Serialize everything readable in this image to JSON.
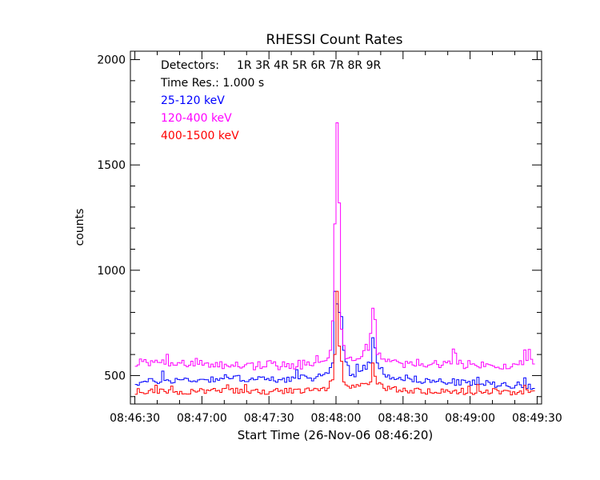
{
  "chart_data": {
    "type": "line",
    "title": "RHESSI Count Rates",
    "xlabel": "Start Time (26-Nov-06 08:46:20)",
    "ylabel": "counts",
    "x_ticks": [
      "08:46:30",
      "08:47:00",
      "08:47:30",
      "08:48:00",
      "08:48:30",
      "08:49:00",
      "08:49:30"
    ],
    "x_tick_seconds": [
      0,
      30,
      60,
      90,
      120,
      150,
      180
    ],
    "xlim_seconds": [
      -2,
      182
    ],
    "y_ticks": [
      500,
      1000,
      1500,
      2000
    ],
    "ylim": [
      365,
      2040
    ],
    "grid": false,
    "annotations": {
      "detectors_label": "Detectors:",
      "detectors": "1R 3R 4R 5R 6R 7R 8R 9R",
      "time_res": "Time Res.: 1.000 s"
    },
    "series": [
      {
        "name": "25-120 keV",
        "color": "#0000ff",
        "keypoints": [
          [
            0,
            465
          ],
          [
            10,
            475
          ],
          [
            20,
            480
          ],
          [
            30,
            480
          ],
          [
            40,
            490
          ],
          [
            50,
            485
          ],
          [
            60,
            480
          ],
          [
            70,
            485
          ],
          [
            80,
            490
          ],
          [
            86,
            510
          ],
          [
            88,
            560
          ],
          [
            89,
            900
          ],
          [
            90,
            840
          ],
          [
            92,
            780
          ],
          [
            93,
            620
          ],
          [
            96,
            500
          ],
          [
            100,
            520
          ],
          [
            105,
            560
          ],
          [
            106,
            680
          ],
          [
            108,
            560
          ],
          [
            112,
            500
          ],
          [
            120,
            490
          ],
          [
            130,
            475
          ],
          [
            140,
            470
          ],
          [
            150,
            465
          ],
          [
            160,
            460
          ],
          [
            170,
            455
          ],
          [
            178,
            450
          ]
        ],
        "noise": 16
      },
      {
        "name": "120-400 keV",
        "color": "#ff00ff",
        "keypoints": [
          [
            0,
            560
          ],
          [
            10,
            555
          ],
          [
            20,
            560
          ],
          [
            30,
            550
          ],
          [
            40,
            550
          ],
          [
            50,
            545
          ],
          [
            60,
            550
          ],
          [
            70,
            550
          ],
          [
            80,
            555
          ],
          [
            85,
            570
          ],
          [
            87,
            620
          ],
          [
            88,
            760
          ],
          [
            89,
            1220
          ],
          [
            90,
            1700
          ],
          [
            91,
            1320
          ],
          [
            92,
            720
          ],
          [
            94,
            580
          ],
          [
            100,
            580
          ],
          [
            104,
            620
          ],
          [
            106,
            820
          ],
          [
            108,
            600
          ],
          [
            112,
            560
          ],
          [
            120,
            560
          ],
          [
            130,
            555
          ],
          [
            140,
            560
          ],
          [
            150,
            550
          ],
          [
            160,
            545
          ],
          [
            170,
            550
          ],
          [
            178,
            560
          ]
        ],
        "noise": 22
      },
      {
        "name": "400-1500 keV",
        "color": "#ff0000",
        "keypoints": [
          [
            0,
            425
          ],
          [
            10,
            425
          ],
          [
            20,
            420
          ],
          [
            30,
            425
          ],
          [
            40,
            430
          ],
          [
            50,
            425
          ],
          [
            60,
            425
          ],
          [
            70,
            430
          ],
          [
            80,
            430
          ],
          [
            86,
            440
          ],
          [
            88,
            480
          ],
          [
            89,
            600
          ],
          [
            90,
            900
          ],
          [
            91,
            640
          ],
          [
            93,
            470
          ],
          [
            96,
            440
          ],
          [
            100,
            450
          ],
          [
            105,
            470
          ],
          [
            106,
            560
          ],
          [
            108,
            460
          ],
          [
            112,
            440
          ],
          [
            120,
            430
          ],
          [
            130,
            425
          ],
          [
            140,
            425
          ],
          [
            150,
            420
          ],
          [
            160,
            425
          ],
          [
            170,
            420
          ],
          [
            178,
            430
          ]
        ],
        "noise": 14
      }
    ]
  }
}
